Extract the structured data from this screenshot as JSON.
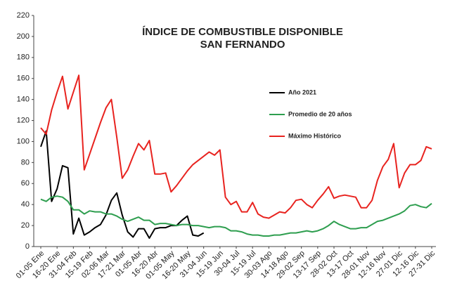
{
  "chart_data": {
    "type": "line",
    "title": [
      "ÍNDICE DE COMBUSTIBLE DISPONIBLE",
      "SAN FERNANDO"
    ],
    "categories": [
      "01-05 Ene",
      null,
      null,
      "16-20 Ene",
      null,
      null,
      "31-04 Feb",
      null,
      null,
      "15-19 Feb",
      null,
      null,
      "02-06 Mar",
      null,
      null,
      "17-21 Mar",
      null,
      null,
      "01-05 Abr",
      null,
      null,
      "16-20 Abr",
      null,
      null,
      "01-05 May",
      null,
      null,
      "16-20 May",
      null,
      null,
      "31-04 Jun",
      null,
      null,
      "15-19 Jun",
      null,
      null,
      "30-04 Jul",
      null,
      null,
      "15-19 Jul",
      null,
      null,
      "30-03 Ago",
      null,
      null,
      "14-18 Ago",
      null,
      null,
      "29-02 Sep",
      null,
      null,
      "13-17 Sep",
      null,
      null,
      "28-02 Oct",
      null,
      null,
      "13-17 Oct",
      null,
      null,
      "28-01 Nov",
      null,
      null,
      "12-16 Nov",
      null,
      null,
      "27-01 Dic",
      null,
      null,
      "12-16 Dic",
      null,
      null,
      "27-31 Dic"
    ],
    "series": [
      {
        "name": "Año 2021",
        "color": "#000000",
        "values": [
          95,
          110,
          43,
          55,
          77,
          75,
          12,
          27,
          11,
          14,
          18,
          21,
          30,
          44,
          51,
          30,
          14,
          9,
          17,
          17,
          8,
          17,
          18,
          18,
          20,
          20,
          25,
          29,
          11,
          10,
          13,
          null,
          null,
          null,
          null,
          null,
          null,
          null,
          null,
          null,
          null,
          null,
          null,
          null,
          null,
          null,
          null,
          null,
          null,
          null,
          null,
          null,
          null,
          null,
          null,
          null,
          null,
          null,
          null,
          null,
          null,
          null,
          null,
          null,
          null,
          null,
          null,
          null,
          null,
          null,
          null,
          null,
          null
        ]
      },
      {
        "name": "Promedio de 20 años",
        "color": "#2e9e4f",
        "values": [
          45,
          43,
          47,
          48,
          47,
          43,
          35,
          35,
          31,
          34,
          33,
          33,
          31,
          31,
          29,
          26,
          24,
          26,
          28,
          25,
          25,
          21,
          22,
          22,
          21,
          20,
          21,
          21,
          20,
          20,
          19,
          18,
          19,
          19,
          18,
          15,
          15,
          14,
          12,
          11,
          11,
          10,
          10,
          11,
          11,
          12,
          13,
          13,
          14,
          15,
          14,
          15,
          17,
          20,
          24,
          21,
          19,
          17,
          17,
          18,
          18,
          21,
          24,
          25,
          27,
          29,
          31,
          34,
          39,
          40,
          38,
          37,
          41
        ]
      },
      {
        "name": "Máximo Histórico",
        "color": "#e8231f",
        "values": [
          113,
          107,
          130,
          147,
          162,
          131,
          147,
          163,
          73,
          88,
          103,
          118,
          132,
          140,
          104,
          65,
          73,
          86,
          98,
          92,
          101,
          69,
          69,
          70,
          52,
          58,
          65,
          72,
          78,
          82,
          86,
          90,
          87,
          92,
          47,
          40,
          43,
          33,
          33,
          42,
          31,
          28,
          27,
          30,
          33,
          32,
          37,
          44,
          45,
          40,
          37,
          44,
          50,
          57,
          46,
          48,
          49,
          48,
          47,
          37,
          37,
          44,
          63,
          76,
          83,
          98,
          56,
          70,
          78,
          78,
          82,
          95,
          93
        ]
      }
    ],
    "ylim": [
      0,
      220
    ],
    "yticks": [
      0,
      20,
      40,
      60,
      80,
      100,
      120,
      140,
      160,
      180,
      200,
      220
    ],
    "grid": false
  }
}
